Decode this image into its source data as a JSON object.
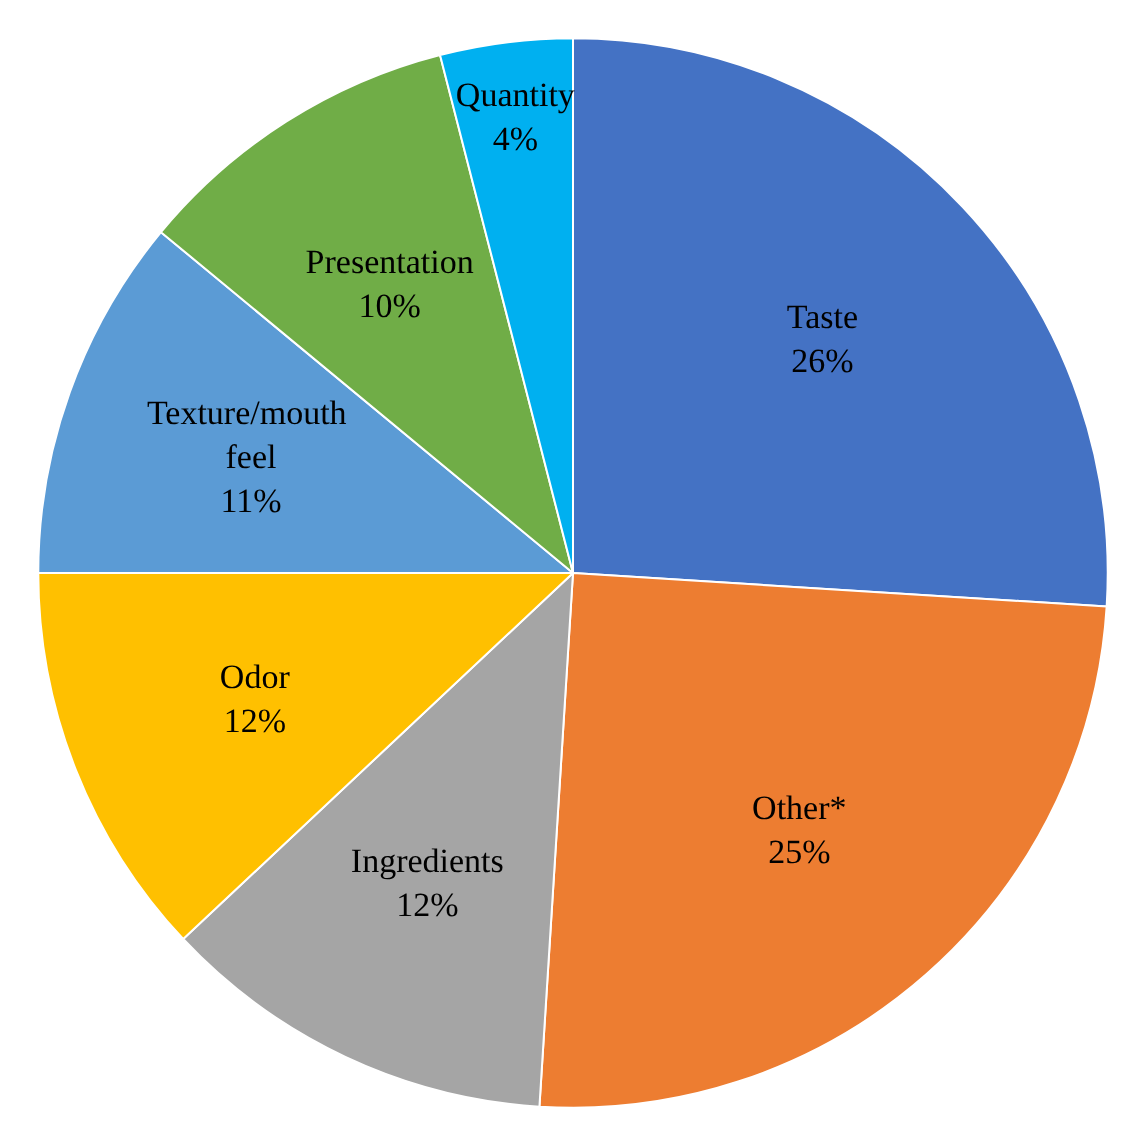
{
  "chart_data": {
    "type": "pie",
    "categories": [
      "Taste",
      "Other*",
      "Ingredients",
      "Odor",
      "Texture/mouth feel",
      "Presentation",
      "Quantity"
    ],
    "values": [
      26,
      25,
      12,
      12,
      11,
      10,
      4
    ],
    "colors": [
      "#4472c4",
      "#ed7d31",
      "#a5a5a5",
      "#ffc000",
      "#5b9bd5",
      "#70ad47",
      "#00b0f0"
    ],
    "value_labels": [
      "26%",
      "25%",
      "12%",
      "12%",
      "11%",
      "10%",
      "4%"
    ],
    "legend": false
  }
}
